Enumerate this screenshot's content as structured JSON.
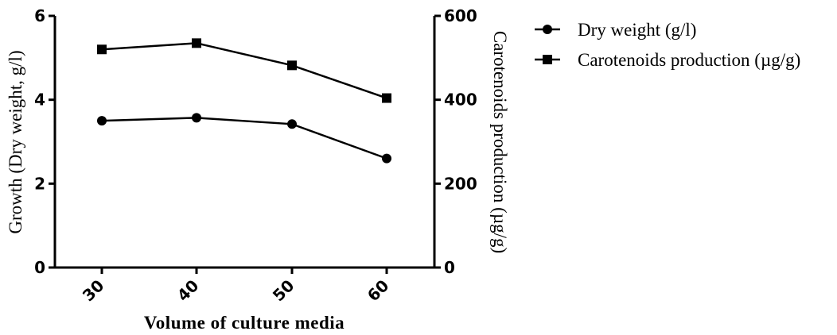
{
  "chart_data": {
    "type": "line",
    "x": [
      30,
      40,
      50,
      60
    ],
    "xlabel": "Volume of culture media",
    "ylabel": "Growth (Dry weight, g/l)",
    "y2label": "Carotenoids production (µg/g)",
    "ylim": [
      0,
      6
    ],
    "y2lim": [
      0,
      600
    ],
    "yticks": [
      0,
      2,
      4,
      6
    ],
    "y2ticks": [
      0,
      200,
      400,
      600
    ],
    "legend_position": "right",
    "series": [
      {
        "name": "Dry weight (g/l)",
        "axis": "left",
        "marker": "circle",
        "values": [
          3.5,
          3.57,
          3.42,
          2.6
        ]
      },
      {
        "name": "Carotenoids production (µg/g)",
        "axis": "right",
        "marker": "square",
        "values": [
          520,
          535,
          482,
          404
        ]
      }
    ]
  }
}
